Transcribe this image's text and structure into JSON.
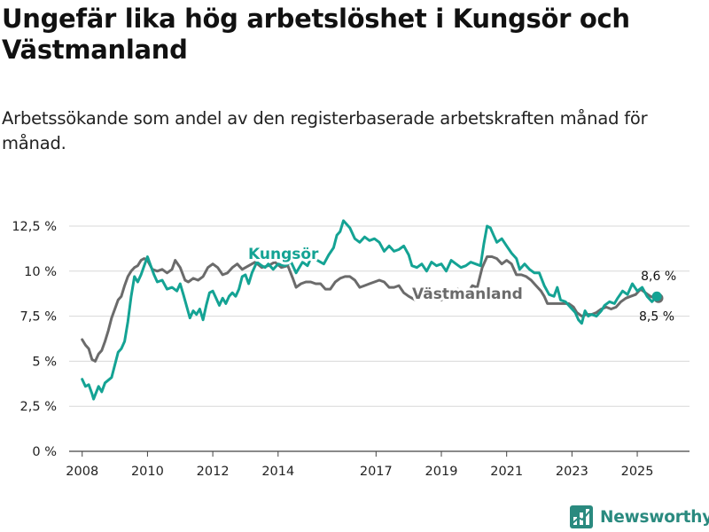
{
  "title": "Ungefär lika hög arbetslöshet i Kungsör och Västmanland",
  "subtitle": "Arbetssökande som andel av den registerbaserade arbetskraften månad för månad.",
  "logo_text": "Newsworthy",
  "colors": {
    "kungsor": "#14a394",
    "vastmanland": "#6b6b6b",
    "grid": "#d8d8d8",
    "axis": "#444444",
    "logo": "#2a8a7f"
  },
  "chart_data": {
    "type": "line",
    "x_range": [
      2007.6,
      2026.6
    ],
    "ylim": [
      0,
      12.5
    ],
    "y_ticks": [
      0,
      2.5,
      5,
      7.5,
      10,
      12.5
    ],
    "y_tick_labels": [
      "0 %",
      "2,5 %",
      "5 %",
      "7,5 %",
      "10 %",
      "12,5 %"
    ],
    "x_ticks": [
      2008,
      2010,
      2012,
      2014,
      2017,
      2019,
      2021,
      2023,
      2025
    ],
    "x_tick_labels": [
      "2008",
      "2010",
      "2012",
      "2014",
      "2017",
      "2019",
      "2021",
      "2023",
      "2025"
    ],
    "series": [
      {
        "name": "Kungsör",
        "color_key": "kungsor",
        "end_label": "8,6 %",
        "points": [
          [
            2008.0,
            4.0
          ],
          [
            2008.1,
            3.6
          ],
          [
            2008.2,
            3.7
          ],
          [
            2008.3,
            3.2
          ],
          [
            2008.35,
            2.9
          ],
          [
            2008.5,
            3.6
          ],
          [
            2008.6,
            3.3
          ],
          [
            2008.7,
            3.8
          ],
          [
            2008.9,
            4.1
          ],
          [
            2009.0,
            4.8
          ],
          [
            2009.1,
            5.5
          ],
          [
            2009.2,
            5.7
          ],
          [
            2009.3,
            6.1
          ],
          [
            2009.4,
            7.2
          ],
          [
            2009.5,
            8.6
          ],
          [
            2009.6,
            9.7
          ],
          [
            2009.7,
            9.4
          ],
          [
            2009.8,
            9.8
          ],
          [
            2009.9,
            10.3
          ],
          [
            2010.0,
            10.8
          ],
          [
            2010.1,
            10.3
          ],
          [
            2010.2,
            9.8
          ],
          [
            2010.3,
            9.4
          ],
          [
            2010.45,
            9.5
          ],
          [
            2010.6,
            9.0
          ],
          [
            2010.75,
            9.1
          ],
          [
            2010.9,
            8.9
          ],
          [
            2011.0,
            9.3
          ],
          [
            2011.1,
            8.7
          ],
          [
            2011.3,
            7.4
          ],
          [
            2011.4,
            7.8
          ],
          [
            2011.5,
            7.6
          ],
          [
            2011.6,
            7.9
          ],
          [
            2011.7,
            7.3
          ],
          [
            2011.8,
            8.1
          ],
          [
            2011.9,
            8.8
          ],
          [
            2012.0,
            8.9
          ],
          [
            2012.1,
            8.5
          ],
          [
            2012.2,
            8.1
          ],
          [
            2012.3,
            8.5
          ],
          [
            2012.4,
            8.2
          ],
          [
            2012.5,
            8.6
          ],
          [
            2012.6,
            8.8
          ],
          [
            2012.7,
            8.6
          ],
          [
            2012.8,
            9.0
          ],
          [
            2012.9,
            9.7
          ],
          [
            2013.0,
            9.8
          ],
          [
            2013.1,
            9.3
          ],
          [
            2013.2,
            9.9
          ],
          [
            2013.35,
            10.5
          ],
          [
            2013.5,
            10.3
          ],
          [
            2013.6,
            10.2
          ],
          [
            2013.7,
            10.4
          ],
          [
            2013.85,
            10.1
          ],
          [
            2014.0,
            10.4
          ],
          [
            2014.2,
            10.3
          ],
          [
            2014.4,
            10.5
          ],
          [
            2014.55,
            9.9
          ],
          [
            2014.65,
            10.2
          ],
          [
            2014.75,
            10.5
          ],
          [
            2014.9,
            10.3
          ],
          [
            2015.0,
            10.7
          ],
          [
            2015.2,
            10.6
          ],
          [
            2015.4,
            10.4
          ],
          [
            2015.55,
            10.9
          ],
          [
            2015.7,
            11.3
          ],
          [
            2015.8,
            12.0
          ],
          [
            2015.9,
            12.2
          ],
          [
            2016.0,
            12.8
          ],
          [
            2016.1,
            12.6
          ],
          [
            2016.2,
            12.4
          ],
          [
            2016.35,
            11.8
          ],
          [
            2016.5,
            11.6
          ],
          [
            2016.65,
            11.9
          ],
          [
            2016.8,
            11.7
          ],
          [
            2016.95,
            11.8
          ],
          [
            2017.1,
            11.6
          ],
          [
            2017.25,
            11.1
          ],
          [
            2017.4,
            11.4
          ],
          [
            2017.55,
            11.1
          ],
          [
            2017.7,
            11.2
          ],
          [
            2017.85,
            11.4
          ],
          [
            2018.0,
            10.9
          ],
          [
            2018.1,
            10.3
          ],
          [
            2018.25,
            10.2
          ],
          [
            2018.4,
            10.4
          ],
          [
            2018.55,
            10.0
          ],
          [
            2018.7,
            10.5
          ],
          [
            2018.85,
            10.3
          ],
          [
            2019.0,
            10.4
          ],
          [
            2019.15,
            10.0
          ],
          [
            2019.3,
            10.6
          ],
          [
            2019.45,
            10.4
          ],
          [
            2019.6,
            10.2
          ],
          [
            2019.75,
            10.3
          ],
          [
            2019.9,
            10.5
          ],
          [
            2020.05,
            10.4
          ],
          [
            2020.2,
            10.3
          ],
          [
            2020.3,
            11.5
          ],
          [
            2020.4,
            12.5
          ],
          [
            2020.5,
            12.4
          ],
          [
            2020.6,
            12.0
          ],
          [
            2020.7,
            11.6
          ],
          [
            2020.85,
            11.8
          ],
          [
            2021.0,
            11.4
          ],
          [
            2021.15,
            11.0
          ],
          [
            2021.3,
            10.7
          ],
          [
            2021.4,
            10.1
          ],
          [
            2021.55,
            10.4
          ],
          [
            2021.7,
            10.1
          ],
          [
            2021.85,
            9.9
          ],
          [
            2022.0,
            9.9
          ],
          [
            2022.15,
            9.2
          ],
          [
            2022.3,
            8.7
          ],
          [
            2022.45,
            8.6
          ],
          [
            2022.55,
            9.1
          ],
          [
            2022.65,
            8.4
          ],
          [
            2022.8,
            8.3
          ],
          [
            2022.95,
            8.0
          ],
          [
            2023.1,
            7.7
          ],
          [
            2023.2,
            7.3
          ],
          [
            2023.3,
            7.1
          ],
          [
            2023.4,
            7.8
          ],
          [
            2023.5,
            7.5
          ],
          [
            2023.6,
            7.6
          ],
          [
            2023.75,
            7.5
          ],
          [
            2023.9,
            7.8
          ],
          [
            2024.0,
            8.1
          ],
          [
            2024.15,
            8.3
          ],
          [
            2024.3,
            8.2
          ],
          [
            2024.4,
            8.5
          ],
          [
            2024.55,
            8.9
          ],
          [
            2024.7,
            8.7
          ],
          [
            2024.85,
            9.3
          ],
          [
            2025.0,
            8.9
          ],
          [
            2025.15,
            9.1
          ],
          [
            2025.3,
            8.6
          ],
          [
            2025.45,
            8.3
          ],
          [
            2025.6,
            8.6
          ]
        ]
      },
      {
        "name": "Västmanland",
        "color_key": "vastmanland",
        "end_label": "8,5 %",
        "points": [
          [
            2008.0,
            6.2
          ],
          [
            2008.1,
            5.9
          ],
          [
            2008.2,
            5.7
          ],
          [
            2008.3,
            5.1
          ],
          [
            2008.4,
            5.0
          ],
          [
            2008.5,
            5.4
          ],
          [
            2008.6,
            5.6
          ],
          [
            2008.7,
            6.1
          ],
          [
            2008.8,
            6.7
          ],
          [
            2008.9,
            7.4
          ],
          [
            2009.0,
            7.9
          ],
          [
            2009.1,
            8.4
          ],
          [
            2009.2,
            8.6
          ],
          [
            2009.3,
            9.2
          ],
          [
            2009.4,
            9.7
          ],
          [
            2009.5,
            10.0
          ],
          [
            2009.6,
            10.2
          ],
          [
            2009.7,
            10.3
          ],
          [
            2009.8,
            10.6
          ],
          [
            2009.9,
            10.7
          ],
          [
            2010.0,
            10.6
          ],
          [
            2010.15,
            10.1
          ],
          [
            2010.3,
            10.0
          ],
          [
            2010.45,
            10.1
          ],
          [
            2010.6,
            9.9
          ],
          [
            2010.75,
            10.1
          ],
          [
            2010.85,
            10.6
          ],
          [
            2011.0,
            10.2
          ],
          [
            2011.15,
            9.5
          ],
          [
            2011.25,
            9.4
          ],
          [
            2011.4,
            9.6
          ],
          [
            2011.55,
            9.5
          ],
          [
            2011.7,
            9.7
          ],
          [
            2011.85,
            10.2
          ],
          [
            2012.0,
            10.4
          ],
          [
            2012.15,
            10.2
          ],
          [
            2012.3,
            9.8
          ],
          [
            2012.45,
            9.9
          ],
          [
            2012.6,
            10.2
          ],
          [
            2012.75,
            10.4
          ],
          [
            2012.9,
            10.1
          ],
          [
            2013.1,
            10.3
          ],
          [
            2013.3,
            10.5
          ],
          [
            2013.5,
            10.2
          ],
          [
            2013.7,
            10.3
          ],
          [
            2013.9,
            10.5
          ],
          [
            2014.1,
            10.2
          ],
          [
            2014.3,
            10.3
          ],
          [
            2014.45,
            9.6
          ],
          [
            2014.55,
            9.1
          ],
          [
            2014.7,
            9.3
          ],
          [
            2014.85,
            9.4
          ],
          [
            2015.0,
            9.4
          ],
          [
            2015.15,
            9.3
          ],
          [
            2015.3,
            9.3
          ],
          [
            2015.45,
            9.0
          ],
          [
            2015.6,
            9.0
          ],
          [
            2015.75,
            9.4
          ],
          [
            2015.9,
            9.6
          ],
          [
            2016.05,
            9.7
          ],
          [
            2016.2,
            9.7
          ],
          [
            2016.35,
            9.5
          ],
          [
            2016.5,
            9.1
          ],
          [
            2016.65,
            9.2
          ],
          [
            2016.8,
            9.3
          ],
          [
            2016.95,
            9.4
          ],
          [
            2017.1,
            9.5
          ],
          [
            2017.25,
            9.4
          ],
          [
            2017.4,
            9.1
          ],
          [
            2017.55,
            9.1
          ],
          [
            2017.7,
            9.2
          ],
          [
            2017.85,
            8.8
          ],
          [
            2018.0,
            8.6
          ],
          [
            2018.2,
            8.4
          ],
          [
            2018.4,
            8.5
          ],
          [
            2018.6,
            8.7
          ],
          [
            2018.8,
            8.5
          ],
          [
            2019.0,
            8.4
          ],
          [
            2019.2,
            8.6
          ],
          [
            2019.35,
            8.7
          ],
          [
            2019.5,
            9.0
          ],
          [
            2019.65,
            8.6
          ],
          [
            2019.8,
            8.8
          ],
          [
            2019.95,
            9.2
          ],
          [
            2020.1,
            9.1
          ],
          [
            2020.25,
            10.2
          ],
          [
            2020.4,
            10.8
          ],
          [
            2020.55,
            10.8
          ],
          [
            2020.7,
            10.7
          ],
          [
            2020.85,
            10.4
          ],
          [
            2021.0,
            10.6
          ],
          [
            2021.15,
            10.4
          ],
          [
            2021.3,
            9.8
          ],
          [
            2021.45,
            9.8
          ],
          [
            2021.6,
            9.7
          ],
          [
            2021.75,
            9.5
          ],
          [
            2021.9,
            9.2
          ],
          [
            2022.05,
            8.9
          ],
          [
            2022.15,
            8.6
          ],
          [
            2022.25,
            8.2
          ],
          [
            2022.5,
            8.2
          ],
          [
            2022.75,
            8.2
          ],
          [
            2022.9,
            8.2
          ],
          [
            2023.05,
            8.0
          ],
          [
            2023.15,
            7.7
          ],
          [
            2023.3,
            7.5
          ],
          [
            2023.45,
            7.6
          ],
          [
            2023.6,
            7.6
          ],
          [
            2023.75,
            7.7
          ],
          [
            2023.9,
            7.9
          ],
          [
            2024.05,
            8.0
          ],
          [
            2024.2,
            7.9
          ],
          [
            2024.35,
            8.0
          ],
          [
            2024.5,
            8.3
          ],
          [
            2024.65,
            8.5
          ],
          [
            2024.8,
            8.6
          ],
          [
            2024.95,
            8.7
          ],
          [
            2025.1,
            9.0
          ],
          [
            2025.25,
            8.8
          ],
          [
            2025.4,
            8.6
          ],
          [
            2025.55,
            8.5
          ],
          [
            2025.65,
            8.5
          ]
        ]
      }
    ]
  }
}
